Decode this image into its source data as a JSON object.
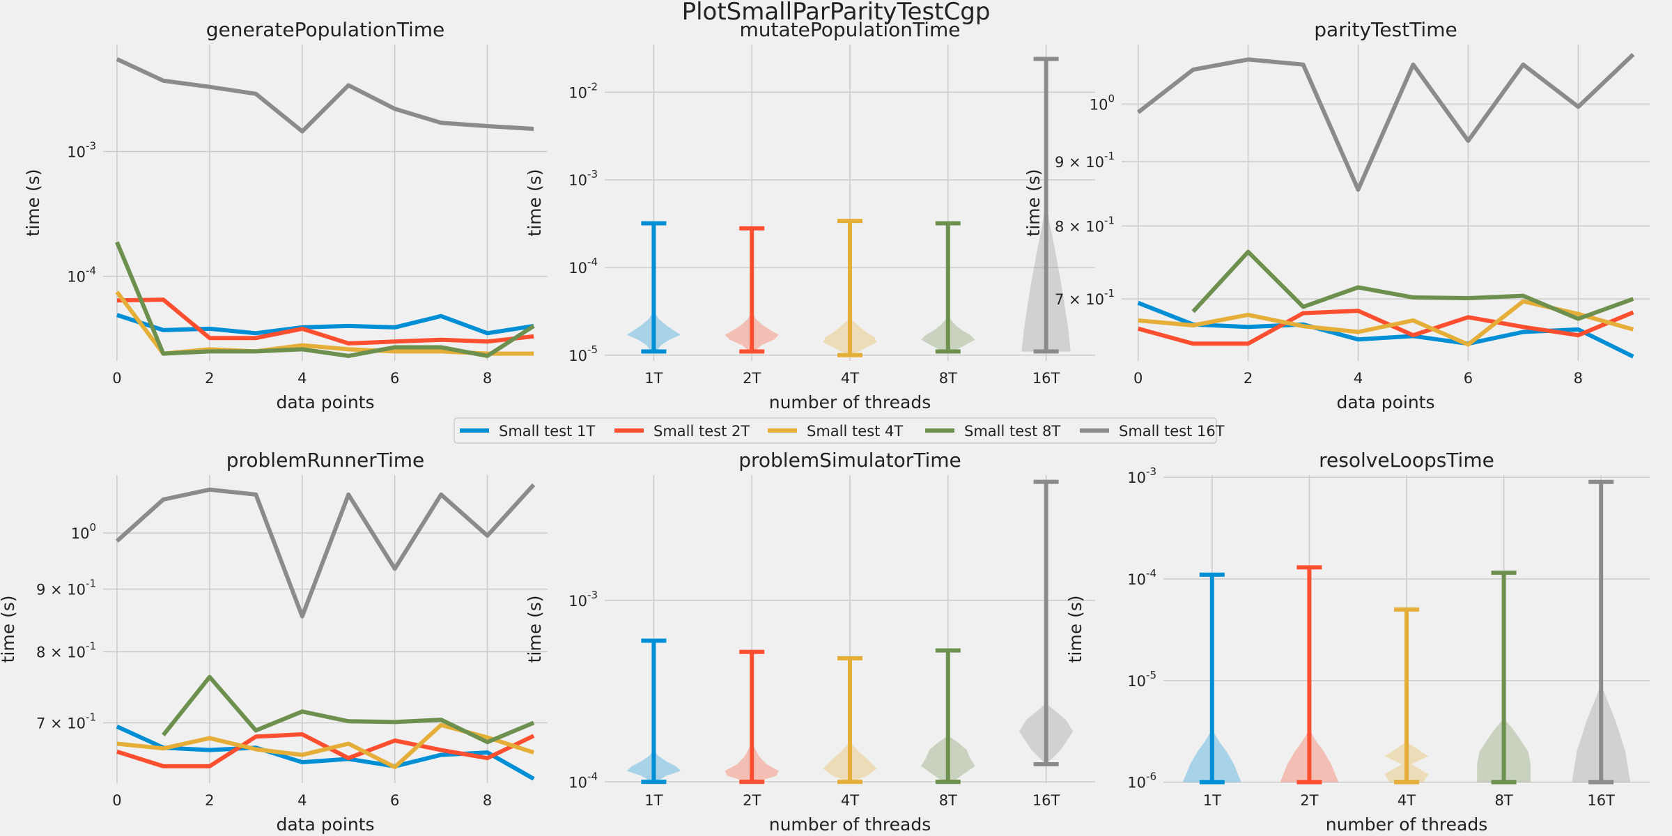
{
  "figure_title": "PlotSmallParParityTestCgp",
  "colors": [
    "#008fd5",
    "#fc4f30",
    "#e5ae38",
    "#6d904f",
    "#8b8b8b"
  ],
  "legend": {
    "placement": "center",
    "entries": [
      "Small test 1T",
      "Small test 2T",
      "Small test 4T",
      "Small test 8T",
      "Small test 16T"
    ]
  },
  "chart_data": [
    {
      "type": "line",
      "title": "generatePopulationTime",
      "xlabel": "data points",
      "ylabel": "time (s)",
      "yscale": "log",
      "ylim": [
        2.1e-05,
        0.0072
      ],
      "xlim": [
        -0.3,
        9.3
      ],
      "x": [
        0,
        1,
        2,
        3,
        4,
        5,
        6,
        7,
        8,
        9
      ],
      "xticks": [
        0,
        2,
        4,
        6,
        8
      ],
      "xtick_labels": [
        "0",
        "2",
        "4",
        "6",
        "8"
      ],
      "yticks": [
        0.0001,
        0.001
      ],
      "ytick_labels": [
        [
          "10",
          "-4"
        ],
        [
          "10",
          "-3"
        ]
      ],
      "series": [
        {
          "name": "Small test 1T",
          "values": [
            4.9e-05,
            3.7e-05,
            3.8e-05,
            3.5e-05,
            3.9e-05,
            4e-05,
            3.9e-05,
            4.8e-05,
            3.5e-05,
            4e-05
          ]
        },
        {
          "name": "Small test 2T",
          "values": [
            6.4e-05,
            6.5e-05,
            3.2e-05,
            3.2e-05,
            3.8e-05,
            2.9e-05,
            3e-05,
            3.1e-05,
            3e-05,
            3.3e-05
          ]
        },
        {
          "name": "Small test 4T",
          "values": [
            7.5e-05,
            2.4e-05,
            2.6e-05,
            2.5e-05,
            2.8e-05,
            2.6e-05,
            2.5e-05,
            2.5e-05,
            2.4e-05,
            2.4e-05
          ]
        },
        {
          "name": "Small test 8T",
          "values": [
            0.000188,
            2.4e-05,
            2.5e-05,
            2.5e-05,
            2.6e-05,
            2.3e-05,
            2.7e-05,
            2.7e-05,
            2.3e-05,
            4e-05
          ]
        },
        {
          "name": "Small test 16T",
          "values": [
            0.0055,
            0.0037,
            0.0033,
            0.0029,
            0.00145,
            0.0034,
            0.0022,
            0.0017,
            0.0016,
            0.00152
          ]
        }
      ]
    },
    {
      "type": "violin",
      "title": "mutatePopulationTime",
      "xlabel": "number of threads",
      "ylabel": "time (s)",
      "yscale": "log",
      "ylim": [
        8.6e-06,
        0.035
      ],
      "xlim": [
        0.5,
        5.5
      ],
      "categories": [
        "1T",
        "2T",
        "4T",
        "8T",
        "16T"
      ],
      "yticks": [
        1e-05,
        0.0001,
        0.001,
        0.01
      ],
      "ytick_labels": [
        [
          "10",
          "-5"
        ],
        [
          "10",
          "-4"
        ],
        [
          "10",
          "-3"
        ],
        [
          "10",
          "-2"
        ]
      ],
      "series": [
        {
          "name": "1T",
          "min": 1.1e-05,
          "max": 0.00032,
          "density": [
            [
              1.1e-05,
              0.05
            ],
            [
              1.3e-05,
              0.15
            ],
            [
              1.5e-05,
              0.32
            ],
            [
              1.7e-05,
              0.55
            ],
            [
              1.9e-05,
              0.42
            ],
            [
              2.2e-05,
              0.25
            ],
            [
              2.6e-05,
              0.1
            ],
            [
              3e-05,
              0.03
            ],
            [
              0.00032,
              0.0
            ]
          ]
        },
        {
          "name": "2T",
          "min": 1.1e-05,
          "max": 0.00028,
          "density": [
            [
              1.1e-05,
              0.05
            ],
            [
              1.3e-05,
              0.2
            ],
            [
              1.5e-05,
              0.45
            ],
            [
              1.7e-05,
              0.55
            ],
            [
              1.9e-05,
              0.4
            ],
            [
              2.2e-05,
              0.22
            ],
            [
              2.6e-05,
              0.08
            ],
            [
              3e-05,
              0.02
            ],
            [
              0.00028,
              0.0
            ]
          ]
        },
        {
          "name": "4T",
          "min": 1e-05,
          "max": 0.00034,
          "density": [
            [
              1e-05,
              0.05
            ],
            [
              1.2e-05,
              0.3
            ],
            [
              1.4e-05,
              0.55
            ],
            [
              1.6e-05,
              0.5
            ],
            [
              1.8e-05,
              0.35
            ],
            [
              2.1e-05,
              0.2
            ],
            [
              2.5e-05,
              0.05
            ],
            [
              0.00034,
              0.0
            ]
          ]
        },
        {
          "name": "8T",
          "min": 1.1e-05,
          "max": 0.00032,
          "density": [
            [
              1.1e-05,
              0.1
            ],
            [
              1.3e-05,
              0.35
            ],
            [
              1.5e-05,
              0.55
            ],
            [
              1.7e-05,
              0.45
            ],
            [
              1.9e-05,
              0.3
            ],
            [
              2.2e-05,
              0.15
            ],
            [
              2.6e-05,
              0.04
            ],
            [
              0.00032,
              0.0
            ]
          ]
        },
        {
          "name": "16T",
          "min": 1.1e-05,
          "max": 0.024,
          "density": [
            [
              1.1e-05,
              0.5
            ],
            [
              2e-05,
              0.45
            ],
            [
              4e-05,
              0.37
            ],
            [
              8e-05,
              0.28
            ],
            [
              0.00016,
              0.18
            ],
            [
              0.0003,
              0.08
            ],
            [
              0.0005,
              0.02
            ],
            [
              0.024,
              0.0
            ]
          ]
        }
      ]
    },
    {
      "type": "line",
      "title": "parityTestTime",
      "xlabel": "data points",
      "ylabel": "time (s)",
      "yscale": "log",
      "ylim": [
        0.625,
        1.115
      ],
      "xlim": [
        -0.3,
        9.3
      ],
      "x": [
        0,
        1,
        2,
        3,
        4,
        5,
        6,
        7,
        8,
        9
      ],
      "xticks": [
        0,
        2,
        4,
        6,
        8
      ],
      "xtick_labels": [
        "0",
        "2",
        "4",
        "6",
        "8"
      ],
      "yticks": [
        0.7,
        0.8,
        0.9,
        1.0
      ],
      "ytick_labels": [
        [
          "7 × 10",
          "-1"
        ],
        [
          "8 × 10",
          "-1"
        ],
        [
          "9 × 10",
          "-1"
        ],
        [
          "10",
          "0"
        ]
      ],
      "series": [
        {
          "name": "Small test 1T",
          "values": [
            0.695,
            0.668,
            0.665,
            0.668,
            0.65,
            0.654,
            0.645,
            0.659,
            0.662,
            0.63
          ]
        },
        {
          "name": "Small test 2T",
          "values": [
            0.663,
            0.645,
            0.645,
            0.682,
            0.685,
            0.655,
            0.677,
            0.665,
            0.655,
            0.683
          ]
        },
        {
          "name": "Small test 4T",
          "values": [
            0.673,
            0.667,
            0.68,
            0.666,
            0.659,
            0.673,
            0.644,
            0.697,
            0.681,
            0.662
          ]
        },
        {
          "name": "Small test 8T",
          "values": [
            null,
            0.684,
            0.763,
            0.69,
            0.715,
            0.702,
            0.701,
            0.704,
            0.675,
            0.7
          ]
        },
        {
          "name": "Small test 16T",
          "values": [
            0.985,
            1.065,
            1.085,
            1.075,
            0.855,
            1.075,
            0.935,
            1.075,
            0.995,
            1.095
          ]
        }
      ]
    },
    {
      "type": "line",
      "title": "problemRunnerTime",
      "xlabel": "data points",
      "ylabel": "time (s)",
      "yscale": "log",
      "ylim": [
        0.625,
        1.115
      ],
      "xlim": [
        -0.3,
        9.3
      ],
      "x": [
        0,
        1,
        2,
        3,
        4,
        5,
        6,
        7,
        8,
        9
      ],
      "xticks": [
        0,
        2,
        4,
        6,
        8
      ],
      "xtick_labels": [
        "0",
        "2",
        "4",
        "6",
        "8"
      ],
      "yticks": [
        0.7,
        0.8,
        0.9,
        1.0
      ],
      "ytick_labels": [
        [
          "7 × 10",
          "-1"
        ],
        [
          "8 × 10",
          "-1"
        ],
        [
          "9 × 10",
          "-1"
        ],
        [
          "10",
          "0"
        ]
      ],
      "series": [
        {
          "name": "Small test 1T",
          "values": [
            0.695,
            0.668,
            0.665,
            0.668,
            0.65,
            0.654,
            0.645,
            0.659,
            0.662,
            0.63
          ]
        },
        {
          "name": "Small test 2T",
          "values": [
            0.663,
            0.645,
            0.645,
            0.682,
            0.685,
            0.655,
            0.677,
            0.665,
            0.655,
            0.683
          ]
        },
        {
          "name": "Small test 4T",
          "values": [
            0.673,
            0.667,
            0.68,
            0.666,
            0.659,
            0.673,
            0.644,
            0.697,
            0.681,
            0.662
          ]
        },
        {
          "name": "Small test 8T",
          "values": [
            null,
            0.684,
            0.763,
            0.69,
            0.715,
            0.702,
            0.701,
            0.704,
            0.675,
            0.7
          ]
        },
        {
          "name": "Small test 16T",
          "values": [
            0.985,
            1.065,
            1.085,
            1.075,
            0.855,
            1.075,
            0.935,
            1.075,
            0.995,
            1.095
          ]
        }
      ]
    },
    {
      "type": "violin",
      "title": "problemSimulatorTime",
      "xlabel": "number of threads",
      "ylabel": "time (s)",
      "yscale": "log",
      "ylim": [
        9.85e-05,
        0.0049
      ],
      "xlim": [
        0.5,
        5.5
      ],
      "categories": [
        "1T",
        "2T",
        "4T",
        "8T",
        "16T"
      ],
      "yticks": [
        0.0001,
        0.001
      ],
      "ytick_labels": [
        [
          "10",
          "-4"
        ],
        [
          "10",
          "-3"
        ]
      ],
      "series": [
        {
          "name": "1T",
          "min": 0.0001,
          "max": 0.0006,
          "density": [
            [
              0.0001,
              0.05
            ],
            [
              0.000108,
              0.25
            ],
            [
              0.000115,
              0.55
            ],
            [
              0.000122,
              0.45
            ],
            [
              0.00013,
              0.25
            ],
            [
              0.00014,
              0.08
            ],
            [
              0.00015,
              0.0
            ],
            [
              0.0006,
              0.0
            ]
          ]
        },
        {
          "name": "2T",
          "min": 0.0001,
          "max": 0.00052,
          "density": [
            [
              0.0001,
              0.1
            ],
            [
              0.000108,
              0.5
            ],
            [
              0.000115,
              0.55
            ],
            [
              0.000125,
              0.3
            ],
            [
              0.000138,
              0.15
            ],
            [
              0.000155,
              0.05
            ],
            [
              0.00017,
              0.0
            ],
            [
              0.00052,
              0.0
            ]
          ]
        },
        {
          "name": "4T",
          "min": 0.0001,
          "max": 0.00048,
          "density": [
            [
              0.0001,
              0.05
            ],
            [
              0.000108,
              0.35
            ],
            [
              0.000118,
              0.55
            ],
            [
              0.00013,
              0.4
            ],
            [
              0.000145,
              0.2
            ],
            [
              0.00016,
              0.05
            ],
            [
              0.00017,
              0.0
            ],
            [
              0.00048,
              0.0
            ]
          ]
        },
        {
          "name": "8T",
          "min": 0.0001,
          "max": 0.00053,
          "density": [
            [
              0.0001,
              0.1
            ],
            [
              0.000112,
              0.35
            ],
            [
              0.000122,
              0.55
            ],
            [
              0.000135,
              0.45
            ],
            [
              0.00015,
              0.38
            ],
            [
              0.000165,
              0.2
            ],
            [
              0.00018,
              0.0
            ],
            [
              0.00053,
              0.0
            ]
          ]
        },
        {
          "name": "16T",
          "min": 0.000125,
          "max": 0.0045,
          "density": [
            [
              0.000125,
              0.0
            ],
            [
              0.00015,
              0.3
            ],
            [
              0.00019,
              0.55
            ],
            [
              0.00022,
              0.4
            ],
            [
              0.00025,
              0.15
            ],
            [
              0.00027,
              0.0
            ],
            [
              0.0045,
              0.0
            ]
          ]
        }
      ]
    },
    {
      "type": "violin",
      "title": "resolveLoopsTime",
      "xlabel": "number of threads",
      "ylabel": "time (s)",
      "yscale": "log",
      "ylim": [
        9.8e-07,
        0.00105
      ],
      "xlim": [
        0.5,
        5.5
      ],
      "categories": [
        "1T",
        "2T",
        "4T",
        "8T",
        "16T"
      ],
      "yticks": [
        1e-06,
        1e-05,
        0.0001,
        0.001
      ],
      "ytick_labels": [
        [
          "10",
          "-6"
        ],
        [
          "10",
          "-5"
        ],
        [
          "10",
          "-4"
        ],
        [
          "10",
          "-3"
        ]
      ],
      "series": [
        {
          "name": "1T",
          "min": 1e-06,
          "max": 0.00011,
          "density": [
            [
              1e-06,
              0.6
            ],
            [
              1.5e-06,
              0.45
            ],
            [
              2e-06,
              0.3
            ],
            [
              2.5e-06,
              0.15
            ],
            [
              3e-06,
              0.05
            ],
            [
              3.5e-06,
              0.0
            ],
            [
              0.00011,
              0.0
            ]
          ]
        },
        {
          "name": "2T",
          "min": 1e-06,
          "max": 0.00013,
          "density": [
            [
              1e-06,
              0.6
            ],
            [
              1.5e-06,
              0.45
            ],
            [
              2e-06,
              0.3
            ],
            [
              2.5e-06,
              0.15
            ],
            [
              3e-06,
              0.05
            ],
            [
              3.5e-06,
              0.0
            ],
            [
              0.00013,
              0.0
            ]
          ]
        },
        {
          "name": "4T",
          "min": 1e-06,
          "max": 5e-05,
          "density": [
            [
              1e-06,
              0.35
            ],
            [
              1.2e-06,
              0.45
            ],
            [
              1.5e-06,
              0.1
            ],
            [
              1.8e-06,
              0.45
            ],
            [
              2e-06,
              0.3
            ],
            [
              2.5e-06,
              0.0
            ],
            [
              5e-05,
              0.0
            ]
          ]
        },
        {
          "name": "8T",
          "min": 1e-06,
          "max": 0.000115,
          "density": [
            [
              1e-06,
              0.55
            ],
            [
              1.5e-06,
              0.55
            ],
            [
              2e-06,
              0.5
            ],
            [
              2.8e-06,
              0.3
            ],
            [
              3.5e-06,
              0.15
            ],
            [
              4.2e-06,
              0.0
            ],
            [
              0.000115,
              0.0
            ]
          ]
        },
        {
          "name": "16T",
          "min": 1e-06,
          "max": 0.0009,
          "density": [
            [
              1e-06,
              0.6
            ],
            [
              2e-06,
              0.5
            ],
            [
              4e-06,
              0.3
            ],
            [
              6e-06,
              0.15
            ],
            [
              8e-06,
              0.05
            ],
            [
              1e-05,
              0.0
            ],
            [
              0.0009,
              0.0
            ]
          ]
        }
      ]
    }
  ]
}
